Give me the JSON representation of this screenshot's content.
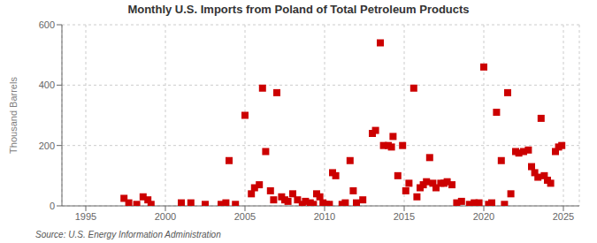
{
  "chart_data": {
    "type": "scatter",
    "title": "Monthly U.S. Imports from Poland of Total Petroleum Products",
    "ylabel": "Thousand Barrels",
    "annotation": "Source: U.S. Energy Information Administration",
    "color": "#cc0000",
    "marker": "square",
    "grid": true,
    "xlim": [
      1993.5,
      2026
    ],
    "ylim": [
      0,
      600
    ],
    "xticks": [
      1995,
      2000,
      2005,
      2010,
      2015,
      2020,
      2025
    ],
    "yticks": [
      0,
      200,
      400,
      600
    ],
    "x": [
      1997.4,
      1997.7,
      1998.2,
      1998.6,
      1998.9,
      1999.1,
      2001.0,
      2001.6,
      2002.5,
      2003.5,
      2003.8,
      2004.0,
      2004.4,
      2005.0,
      2005.4,
      2005.6,
      2005.9,
      2006.1,
      2006.3,
      2006.6,
      2006.8,
      2007.0,
      2007.3,
      2007.5,
      2007.7,
      2008.0,
      2008.3,
      2008.6,
      2008.8,
      2009.1,
      2009.3,
      2009.5,
      2009.7,
      2009.9,
      2010.1,
      2010.3,
      2010.5,
      2010.7,
      2011.1,
      2011.3,
      2011.6,
      2011.8,
      2012.0,
      2012.4,
      2013.0,
      2013.2,
      2013.5,
      2013.7,
      2014.0,
      2014.2,
      2014.3,
      2014.6,
      2014.9,
      2015.1,
      2015.3,
      2015.6,
      2015.8,
      2016.0,
      2016.2,
      2016.4,
      2016.6,
      2016.8,
      2017.0,
      2017.3,
      2017.5,
      2017.7,
      2018.0,
      2018.3,
      2018.6,
      2019.1,
      2019.4,
      2019.7,
      2020.0,
      2020.3,
      2020.5,
      2020.8,
      2021.1,
      2021.3,
      2021.5,
      2021.7,
      2022.0,
      2022.2,
      2022.5,
      2022.8,
      2023.0,
      2023.2,
      2023.4,
      2023.6,
      2023.8,
      2024.0,
      2024.2,
      2024.5,
      2024.7,
      2024.9
    ],
    "values": [
      25,
      10,
      5,
      30,
      20,
      5,
      10,
      10,
      5,
      5,
      10,
      150,
      5,
      300,
      40,
      60,
      70,
      390,
      180,
      50,
      20,
      375,
      30,
      20,
      15,
      40,
      20,
      5,
      15,
      10,
      5,
      40,
      30,
      10,
      5,
      5,
      110,
      100,
      5,
      10,
      150,
      50,
      10,
      20,
      240,
      250,
      540,
      200,
      200,
      195,
      230,
      100,
      200,
      50,
      75,
      390,
      30,
      60,
      70,
      80,
      160,
      75,
      60,
      75,
      75,
      80,
      70,
      10,
      15,
      5,
      10,
      10,
      460,
      5,
      10,
      310,
      150,
      5,
      375,
      40,
      180,
      175,
      180,
      185,
      130,
      110,
      95,
      290,
      100,
      85,
      75,
      180,
      195,
      200
    ]
  }
}
